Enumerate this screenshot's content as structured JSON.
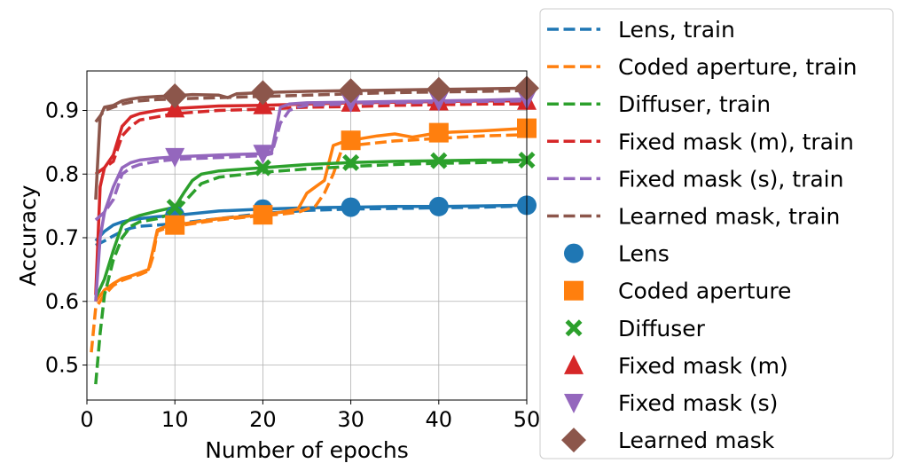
{
  "chart_data": {
    "type": "line",
    "xlabel": "Number of epochs",
    "ylabel": "Accuracy",
    "xlim": [
      0,
      50
    ],
    "ylim": [
      0.445,
      0.962
    ],
    "xticks": [
      0,
      10,
      20,
      30,
      40,
      50
    ],
    "yticks": [
      0.5,
      0.6,
      0.7,
      0.8,
      0.9
    ],
    "xtick_labels": [
      "0",
      "10",
      "20",
      "30",
      "40",
      "50"
    ],
    "ytick_labels": [
      "0.5",
      "0.6",
      "0.7",
      "0.8",
      "0.9"
    ],
    "grid": true,
    "legend_position": "outside-right",
    "marker_epochs": [
      10,
      20,
      30,
      40,
      50
    ],
    "series": [
      {
        "color": "#1f77b4",
        "marker": "circle",
        "train_name": "Lens, train",
        "test_name": "Lens",
        "train": [
          [
            1,
            0.688
          ],
          [
            2,
            0.695
          ],
          [
            3,
            0.703
          ],
          [
            4,
            0.71
          ],
          [
            5,
            0.715
          ],
          [
            6,
            0.718
          ],
          [
            8,
            0.72
          ],
          [
            10,
            0.722
          ],
          [
            15,
            0.73
          ],
          [
            20,
            0.738
          ],
          [
            25,
            0.743
          ],
          [
            30,
            0.745
          ],
          [
            35,
            0.746
          ],
          [
            40,
            0.747
          ],
          [
            45,
            0.748
          ],
          [
            50,
            0.75
          ]
        ],
        "test": [
          [
            1,
            0.695
          ],
          [
            2,
            0.71
          ],
          [
            3,
            0.72
          ],
          [
            4,
            0.725
          ],
          [
            5,
            0.728
          ],
          [
            6,
            0.73
          ],
          [
            8,
            0.733
          ],
          [
            10,
            0.735
          ],
          [
            15,
            0.742
          ],
          [
            20,
            0.745
          ],
          [
            25,
            0.747
          ],
          [
            30,
            0.748
          ],
          [
            35,
            0.749
          ],
          [
            40,
            0.749
          ],
          [
            45,
            0.75
          ],
          [
            50,
            0.751
          ]
        ]
      },
      {
        "color": "#ff7f0e",
        "marker": "square",
        "train_name": "Coded aperture, train",
        "test_name": "Coded aperture",
        "train": [
          [
            0.5,
            0.52
          ],
          [
            1,
            0.59
          ],
          [
            2,
            0.61
          ],
          [
            3,
            0.625
          ],
          [
            4,
            0.633
          ],
          [
            5,
            0.638
          ],
          [
            6,
            0.642
          ],
          [
            7,
            0.648
          ],
          [
            7.5,
            0.67
          ],
          [
            8,
            0.71
          ],
          [
            9,
            0.715
          ],
          [
            10,
            0.718
          ],
          [
            15,
            0.728
          ],
          [
            20,
            0.735
          ],
          [
            22,
            0.737
          ],
          [
            24,
            0.74
          ],
          [
            26,
            0.75
          ],
          [
            27,
            0.77
          ],
          [
            28,
            0.8
          ],
          [
            29,
            0.84
          ],
          [
            30,
            0.845
          ],
          [
            35,
            0.852
          ],
          [
            40,
            0.856
          ],
          [
            45,
            0.86
          ],
          [
            50,
            0.862
          ]
        ],
        "test": [
          [
            1,
            0.6
          ],
          [
            2,
            0.618
          ],
          [
            3,
            0.628
          ],
          [
            4,
            0.636
          ],
          [
            5,
            0.64
          ],
          [
            6,
            0.645
          ],
          [
            7,
            0.65
          ],
          [
            7.5,
            0.68
          ],
          [
            8,
            0.712
          ],
          [
            9,
            0.718
          ],
          [
            10,
            0.72
          ],
          [
            15,
            0.73
          ],
          [
            20,
            0.736
          ],
          [
            22,
            0.74
          ],
          [
            24,
            0.745
          ],
          [
            25,
            0.77
          ],
          [
            26,
            0.78
          ],
          [
            27,
            0.79
          ],
          [
            28,
            0.845
          ],
          [
            29,
            0.85
          ],
          [
            30,
            0.853
          ],
          [
            33,
            0.86
          ],
          [
            35,
            0.863
          ],
          [
            37,
            0.858
          ],
          [
            40,
            0.865
          ],
          [
            45,
            0.868
          ],
          [
            50,
            0.872
          ]
        ]
      },
      {
        "color": "#2ca02c",
        "marker": "x",
        "train_name": "Diffuser, train",
        "test_name": "Diffuser",
        "train": [
          [
            1,
            0.47
          ],
          [
            1.5,
            0.55
          ],
          [
            2,
            0.61
          ],
          [
            3,
            0.665
          ],
          [
            4,
            0.7
          ],
          [
            5,
            0.718
          ],
          [
            6,
            0.725
          ],
          [
            8,
            0.73
          ],
          [
            10,
            0.74
          ],
          [
            11,
            0.755
          ],
          [
            12,
            0.77
          ],
          [
            13,
            0.785
          ],
          [
            15,
            0.795
          ],
          [
            20,
            0.803
          ],
          [
            25,
            0.808
          ],
          [
            30,
            0.812
          ],
          [
            35,
            0.815
          ],
          [
            40,
            0.817
          ],
          [
            45,
            0.818
          ],
          [
            50,
            0.82
          ]
        ],
        "test": [
          [
            1,
            0.605
          ],
          [
            2,
            0.635
          ],
          [
            3,
            0.68
          ],
          [
            4,
            0.72
          ],
          [
            5,
            0.73
          ],
          [
            6,
            0.735
          ],
          [
            8,
            0.742
          ],
          [
            10,
            0.748
          ],
          [
            11,
            0.77
          ],
          [
            12,
            0.79
          ],
          [
            13,
            0.8
          ],
          [
            15,
            0.805
          ],
          [
            18,
            0.808
          ],
          [
            20,
            0.81
          ],
          [
            25,
            0.815
          ],
          [
            30,
            0.818
          ],
          [
            35,
            0.82
          ],
          [
            40,
            0.821
          ],
          [
            45,
            0.822
          ],
          [
            50,
            0.822
          ]
        ]
      },
      {
        "color": "#d62728",
        "marker": "triangle-up",
        "train_name": "Fixed mask (m), train",
        "test_name": "Fixed mask (m)",
        "train": [
          [
            1,
            0.8
          ],
          [
            2,
            0.81
          ],
          [
            3,
            0.82
          ],
          [
            4,
            0.86
          ],
          [
            5,
            0.875
          ],
          [
            6,
            0.885
          ],
          [
            8,
            0.89
          ],
          [
            10,
            0.895
          ],
          [
            15,
            0.9
          ],
          [
            20,
            0.902
          ],
          [
            25,
            0.905
          ],
          [
            30,
            0.906
          ],
          [
            35,
            0.908
          ],
          [
            40,
            0.909
          ],
          [
            45,
            0.91
          ],
          [
            50,
            0.91
          ]
        ],
        "test": [
          [
            1,
            0.61
          ],
          [
            1.5,
            0.78
          ],
          [
            2,
            0.81
          ],
          [
            3,
            0.83
          ],
          [
            4,
            0.875
          ],
          [
            5,
            0.89
          ],
          [
            6,
            0.895
          ],
          [
            8,
            0.9
          ],
          [
            10,
            0.903
          ],
          [
            15,
            0.907
          ],
          [
            20,
            0.908
          ],
          [
            25,
            0.91
          ],
          [
            30,
            0.912
          ],
          [
            35,
            0.913
          ],
          [
            40,
            0.914
          ],
          [
            45,
            0.915
          ],
          [
            50,
            0.915
          ]
        ]
      },
      {
        "color": "#9467bd",
        "marker": "triangle-down",
        "train_name": "Fixed mask (s), train",
        "test_name": "Fixed mask (s)",
        "train": [
          [
            1,
            0.728
          ],
          [
            2,
            0.74
          ],
          [
            3,
            0.76
          ],
          [
            4,
            0.8
          ],
          [
            5,
            0.81
          ],
          [
            6,
            0.815
          ],
          [
            8,
            0.82
          ],
          [
            10,
            0.823
          ],
          [
            15,
            0.826
          ],
          [
            20,
            0.829
          ],
          [
            21,
            0.832
          ],
          [
            22,
            0.88
          ],
          [
            23,
            0.9
          ],
          [
            24,
            0.905
          ],
          [
            25,
            0.908
          ],
          [
            30,
            0.91
          ],
          [
            35,
            0.912
          ],
          [
            40,
            0.913
          ],
          [
            45,
            0.914
          ],
          [
            50,
            0.915
          ]
        ],
        "test": [
          [
            1,
            0.6
          ],
          [
            1.5,
            0.7
          ],
          [
            2,
            0.74
          ],
          [
            3,
            0.78
          ],
          [
            4,
            0.81
          ],
          [
            5,
            0.818
          ],
          [
            6,
            0.822
          ],
          [
            8,
            0.825
          ],
          [
            10,
            0.827
          ],
          [
            15,
            0.83
          ],
          [
            20,
            0.832
          ],
          [
            21,
            0.835
          ],
          [
            22,
            0.905
          ],
          [
            23,
            0.91
          ],
          [
            25,
            0.912
          ],
          [
            30,
            0.913
          ],
          [
            35,
            0.914
          ],
          [
            40,
            0.915
          ],
          [
            45,
            0.916
          ],
          [
            50,
            0.918
          ]
        ]
      },
      {
        "color": "#8c564b",
        "marker": "diamond",
        "train_name": "Learned mask, train",
        "test_name": "Learned mask",
        "train": [
          [
            1,
            0.882
          ],
          [
            2,
            0.9
          ],
          [
            3,
            0.905
          ],
          [
            4,
            0.91
          ],
          [
            5,
            0.913
          ],
          [
            6,
            0.915
          ],
          [
            8,
            0.917
          ],
          [
            10,
            0.918
          ],
          [
            15,
            0.92
          ],
          [
            20,
            0.922
          ],
          [
            25,
            0.924
          ],
          [
            30,
            0.926
          ],
          [
            35,
            0.928
          ],
          [
            40,
            0.929
          ],
          [
            45,
            0.93
          ],
          [
            50,
            0.931
          ]
        ],
        "test": [
          [
            1,
            0.76
          ],
          [
            1.5,
            0.89
          ],
          [
            2,
            0.905
          ],
          [
            3,
            0.908
          ],
          [
            4,
            0.915
          ],
          [
            5,
            0.918
          ],
          [
            6,
            0.92
          ],
          [
            8,
            0.922
          ],
          [
            10,
            0.923
          ],
          [
            12,
            0.925
          ],
          [
            15,
            0.924
          ],
          [
            16,
            0.92
          ],
          [
            17,
            0.926
          ],
          [
            20,
            0.928
          ],
          [
            25,
            0.93
          ],
          [
            30,
            0.931
          ],
          [
            35,
            0.932
          ],
          [
            40,
            0.933
          ],
          [
            45,
            0.934
          ],
          [
            50,
            0.935
          ]
        ]
      }
    ]
  }
}
